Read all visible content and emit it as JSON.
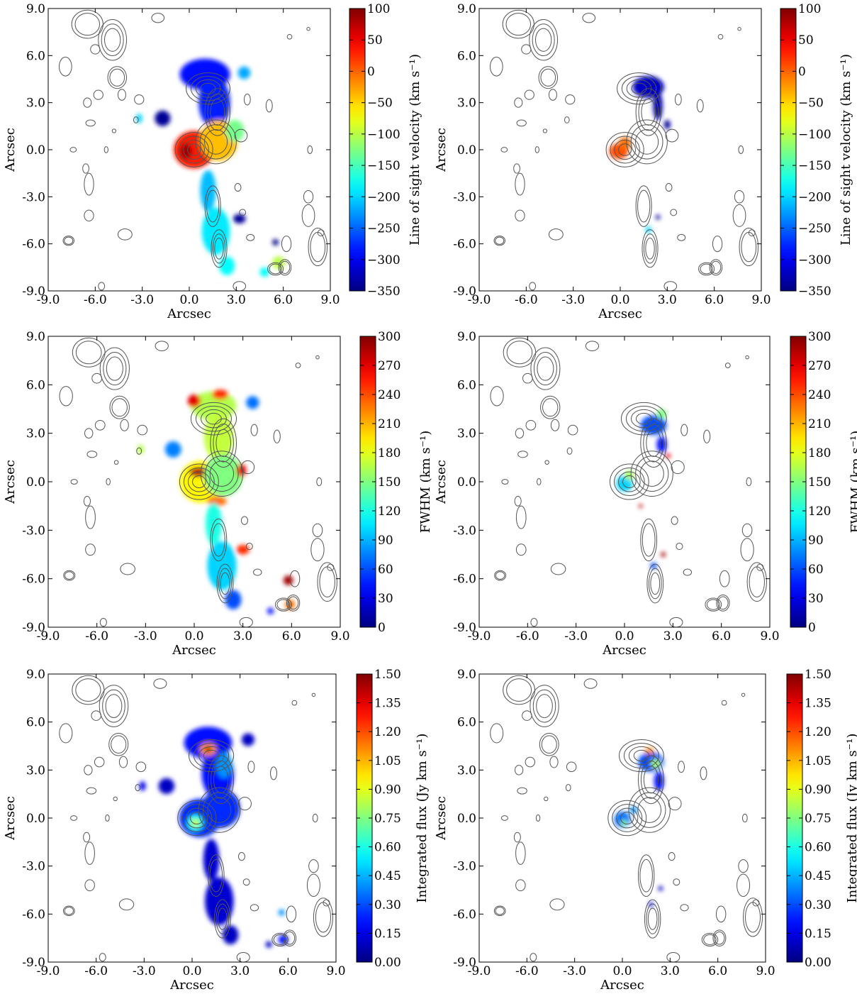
{
  "chart_data": [
    {
      "type": "heatmap",
      "panel": "velocity-extended",
      "xlabel": "Arcsec",
      "ylabel": "Arcsec",
      "xlim": [
        -9.0,
        9.0
      ],
      "ylim": [
        -9.0,
        9.0
      ],
      "xticks": [
        "-9.0",
        "-6.0",
        "-3.0",
        "0.0",
        "3.0",
        "6.0",
        "9.0"
      ],
      "yticks": [
        "-9.0",
        "-6.0",
        "-3.0",
        "0.0",
        "3.0",
        "6.0",
        "9.0"
      ],
      "colorbar": {
        "label": "Line of sight velocity (km s⁻¹)",
        "min": -350,
        "max": 100,
        "ticks": [
          "100",
          "50",
          "0",
          "−50",
          "−100",
          "−150",
          "−200",
          "−250",
          "−300",
          "−350"
        ]
      },
      "colormap": "jet",
      "contours": "grey",
      "features": [
        {
          "x": 1.0,
          "y": 4.8,
          "value": -290,
          "rx": 1.6,
          "ry": 1.0
        },
        {
          "x": 1.6,
          "y": 3.0,
          "value": -280,
          "rx": 1.0,
          "ry": 1.6
        },
        {
          "x": -1.7,
          "y": 2.0,
          "value": -340,
          "rx": 0.5,
          "ry": 0.5
        },
        {
          "x": -3.2,
          "y": 2.0,
          "value": -200,
          "rx": 0.2,
          "ry": 0.3
        },
        {
          "x": 3.5,
          "y": 4.9,
          "value": -220,
          "rx": 0.4,
          "ry": 0.4
        },
        {
          "x": 0.3,
          "y": 0.0,
          "value": 30,
          "rx": 1.3,
          "ry": 1.2
        },
        {
          "x": -0.2,
          "y": -0.1,
          "value": 85,
          "rx": 0.4,
          "ry": 0.5
        },
        {
          "x": 1.9,
          "y": 0.6,
          "value": -40,
          "rx": 1.2,
          "ry": 1.3
        },
        {
          "x": 2.9,
          "y": 1.2,
          "value": -130,
          "rx": 0.6,
          "ry": 0.7
        },
        {
          "x": 1.2,
          "y": -2.6,
          "value": -210,
          "rx": 0.5,
          "ry": 1.3
        },
        {
          "x": 1.7,
          "y": -5.2,
          "value": -190,
          "rx": 0.9,
          "ry": 1.5
        },
        {
          "x": 2.4,
          "y": -7.4,
          "value": -180,
          "rx": 0.5,
          "ry": 0.6
        },
        {
          "x": 3.2,
          "y": -4.4,
          "value": -340,
          "rx": 0.4,
          "ry": 0.3
        },
        {
          "x": 5.7,
          "y": -7.2,
          "value": -100,
          "rx": 0.4,
          "ry": 0.4
        },
        {
          "x": 4.8,
          "y": -7.8,
          "value": -180,
          "rx": 0.3,
          "ry": 0.3
        },
        {
          "x": 5.5,
          "y": -5.9,
          "value": -350,
          "rx": 0.2,
          "ry": 0.2
        }
      ]
    },
    {
      "type": "heatmap",
      "panel": "velocity-compact",
      "xlabel": "Arcsec",
      "ylabel": "Arcsec",
      "xlim": [
        -9.0,
        9.0
      ],
      "ylim": [
        -9.0,
        9.0
      ],
      "xticks": [
        "-9.0",
        "-6.0",
        "-3.0",
        "0.0",
        "3.0",
        "6.0",
        "9.0"
      ],
      "yticks": [
        "-9.0",
        "-6.0",
        "-3.0",
        "0.0",
        "3.0",
        "6.0",
        "9.0"
      ],
      "colorbar": {
        "label": "Line of sight velocity (km s⁻¹)",
        "min": -350,
        "max": 100,
        "ticks": [
          "100",
          "50",
          "0",
          "−50",
          "−100",
          "−150",
          "−200",
          "−250",
          "−300",
          "−350"
        ]
      },
      "colormap": "jet",
      "contours": "grey",
      "features": [
        {
          "x": 1.8,
          "y": 4.0,
          "value": -320,
          "rx": 1.0,
          "ry": 0.7
        },
        {
          "x": 2.4,
          "y": 2.8,
          "value": -330,
          "rx": 0.3,
          "ry": 0.9
        },
        {
          "x": 3.0,
          "y": 1.6,
          "value": -340,
          "rx": 0.2,
          "ry": 0.3
        },
        {
          "x": -0.1,
          "y": -0.1,
          "value": 10,
          "rx": 0.6,
          "ry": 0.5
        },
        {
          "x": 0.3,
          "y": 0.4,
          "value": -5,
          "rx": 0.4,
          "ry": 0.4
        },
        {
          "x": 1.8,
          "y": -5.1,
          "value": -200,
          "rx": 0.2,
          "ry": 0.2
        },
        {
          "x": 2.4,
          "y": -4.3,
          "value": -340,
          "rx": 0.15,
          "ry": 0.15
        }
      ]
    },
    {
      "type": "heatmap",
      "panel": "fwhm-extended",
      "xlabel": "Arcsec",
      "ylabel": "Arcsec",
      "xlim": [
        -9.0,
        9.0
      ],
      "ylim": [
        -9.0,
        9.0
      ],
      "xticks": [
        "-9.0",
        "-6.0",
        "-3.0",
        "0.0",
        "3.0",
        "6.0",
        "9.0"
      ],
      "yticks": [
        "-9.0",
        "-6.0",
        "-3.0",
        "0.0",
        "3.0",
        "6.0",
        "9.0"
      ],
      "colorbar": {
        "label": "FWHM (km s⁻¹)",
        "min": 0,
        "max": 300,
        "ticks": [
          "300",
          "270",
          "240",
          "210",
          "180",
          "150",
          "120",
          "90",
          "60",
          "30",
          "0"
        ]
      },
      "colormap": "jet",
      "contours": "grey",
      "features": [
        {
          "x": 1.2,
          "y": 4.7,
          "value": 165,
          "rx": 1.4,
          "ry": 0.9
        },
        {
          "x": 1.5,
          "y": 2.8,
          "value": 170,
          "rx": 0.9,
          "ry": 1.5
        },
        {
          "x": 0.0,
          "y": 5.0,
          "value": 270,
          "rx": 0.4,
          "ry": 0.4
        },
        {
          "x": 1.6,
          "y": 5.4,
          "value": 250,
          "rx": 0.5,
          "ry": 0.3
        },
        {
          "x": -1.3,
          "y": 2.0,
          "value": 75,
          "rx": 0.5,
          "ry": 0.5
        },
        {
          "x": -3.3,
          "y": 2.0,
          "value": 165,
          "rx": 0.2,
          "ry": 0.3
        },
        {
          "x": 3.6,
          "y": 4.9,
          "value": 70,
          "rx": 0.4,
          "ry": 0.4
        },
        {
          "x": 0.4,
          "y": 0.0,
          "value": 190,
          "rx": 1.3,
          "ry": 1.3
        },
        {
          "x": 0.3,
          "y": 0.6,
          "value": 285,
          "rx": 0.6,
          "ry": 0.3
        },
        {
          "x": 1.4,
          "y": -1.2,
          "value": 230,
          "rx": 0.6,
          "ry": 0.3
        },
        {
          "x": 1.8,
          "y": 0.4,
          "value": 150,
          "rx": 1.2,
          "ry": 1.3
        },
        {
          "x": 2.9,
          "y": 0.7,
          "value": 270,
          "rx": 0.3,
          "ry": 0.4
        },
        {
          "x": 1.2,
          "y": -2.6,
          "value": 120,
          "rx": 0.5,
          "ry": 1.3
        },
        {
          "x": 1.7,
          "y": -5.2,
          "value": 100,
          "rx": 0.9,
          "ry": 1.5
        },
        {
          "x": 2.4,
          "y": -7.3,
          "value": 60,
          "rx": 0.5,
          "ry": 0.6
        },
        {
          "x": 3.0,
          "y": -4.2,
          "value": 250,
          "rx": 0.4,
          "ry": 0.3
        },
        {
          "x": 5.8,
          "y": -6.1,
          "value": 290,
          "rx": 0.3,
          "ry": 0.3
        },
        {
          "x": 5.9,
          "y": -7.6,
          "value": 230,
          "rx": 0.3,
          "ry": 0.3
        },
        {
          "x": 4.7,
          "y": -8.0,
          "value": 40,
          "rx": 0.2,
          "ry": 0.2
        }
      ]
    },
    {
      "type": "heatmap",
      "panel": "fwhm-compact",
      "xlabel": "Arcsec",
      "ylabel": "Arcsec",
      "xlim": [
        -9.0,
        9.0
      ],
      "ylim": [
        -9.0,
        9.0
      ],
      "xticks": [
        "-9.0",
        "-6.0",
        "-3.0",
        "0.0",
        "3.0",
        "6.0",
        "9.0"
      ],
      "yticks": [
        "-9.0",
        "-6.0",
        "-3.0",
        "0.0",
        "3.0",
        "6.0",
        "9.0"
      ],
      "colorbar": {
        "label": "FWHM (km s⁻¹)",
        "min": 0,
        "max": 300,
        "ticks": [
          "300",
          "270",
          "240",
          "210",
          "180",
          "150",
          "120",
          "90",
          "60",
          "30",
          "0"
        ]
      },
      "colormap": "jet",
      "contours": "grey",
      "features": [
        {
          "x": 1.8,
          "y": 3.5,
          "value": 60,
          "rx": 0.8,
          "ry": 0.6
        },
        {
          "x": 2.3,
          "y": 4.2,
          "value": 150,
          "rx": 0.3,
          "ry": 0.3
        },
        {
          "x": 2.3,
          "y": 2.3,
          "value": 40,
          "rx": 0.3,
          "ry": 0.5
        },
        {
          "x": 2.7,
          "y": 1.6,
          "value": 270,
          "rx": 0.15,
          "ry": 0.15
        },
        {
          "x": 0.0,
          "y": -0.1,
          "value": 100,
          "rx": 0.5,
          "ry": 0.5
        },
        {
          "x": 0.3,
          "y": 0.4,
          "value": 160,
          "rx": 0.3,
          "ry": 0.3
        },
        {
          "x": 2.4,
          "y": -4.5,
          "value": 290,
          "rx": 0.15,
          "ry": 0.15
        },
        {
          "x": 1.8,
          "y": -5.2,
          "value": 60,
          "rx": 0.2,
          "ry": 0.2
        },
        {
          "x": 1.0,
          "y": -1.5,
          "value": 280,
          "rx": 0.12,
          "ry": 0.12
        }
      ]
    },
    {
      "type": "heatmap",
      "panel": "flux-extended",
      "xlabel": "Arcsec",
      "ylabel": "Arcsec",
      "xlim": [
        -9.0,
        9.0
      ],
      "ylim": [
        -9.0,
        9.0
      ],
      "xticks": [
        "-9.0",
        "-6.0",
        "-3.0",
        "0.0",
        "3.0",
        "6.0",
        "9.0"
      ],
      "yticks": [
        "-9.0",
        "-6.0",
        "-3.0",
        "0.0",
        "3.0",
        "6.0",
        "9.0"
      ],
      "colorbar": {
        "label": "Integrated flux (Jy km s⁻¹)",
        "min": 0.0,
        "max": 1.5,
        "ticks": [
          "1.50",
          "1.35",
          "1.20",
          "1.05",
          "0.90",
          "0.75",
          "0.60",
          "0.45",
          "0.30",
          "0.15",
          "0.00"
        ]
      },
      "colormap": "jet",
      "contours": "grey",
      "features": [
        {
          "x": 1.0,
          "y": 4.7,
          "value": 0.2,
          "rx": 1.5,
          "ry": 1.0
        },
        {
          "x": 1.6,
          "y": 2.8,
          "value": 0.2,
          "rx": 1.0,
          "ry": 1.6
        },
        {
          "x": 2.0,
          "y": 3.3,
          "value": 0.4,
          "rx": 0.5,
          "ry": 0.8
        },
        {
          "x": 1.0,
          "y": 4.3,
          "value": 1.1,
          "rx": 0.5,
          "ry": 0.4
        },
        {
          "x": 1.0,
          "y": 4.3,
          "value": 1.45,
          "rx": 0.2,
          "ry": 0.2
        },
        {
          "x": -1.6,
          "y": 2.0,
          "value": 0.1,
          "rx": 0.5,
          "ry": 0.5
        },
        {
          "x": -3.1,
          "y": 2.0,
          "value": 0.15,
          "rx": 0.2,
          "ry": 0.3
        },
        {
          "x": 3.5,
          "y": 4.9,
          "value": 0.1,
          "rx": 0.4,
          "ry": 0.4
        },
        {
          "x": 0.5,
          "y": 0.0,
          "value": 0.25,
          "rx": 1.3,
          "ry": 1.2
        },
        {
          "x": 0.2,
          "y": -0.3,
          "value": 0.6,
          "rx": 0.5,
          "ry": 0.5
        },
        {
          "x": 0.2,
          "y": -0.3,
          "value": 0.85,
          "rx": 0.25,
          "ry": 0.25
        },
        {
          "x": 1.8,
          "y": 0.6,
          "value": 0.25,
          "rx": 1.2,
          "ry": 1.2
        },
        {
          "x": 1.2,
          "y": -2.6,
          "value": 0.12,
          "rx": 0.5,
          "ry": 1.3
        },
        {
          "x": 1.7,
          "y": -5.2,
          "value": 0.12,
          "rx": 0.9,
          "ry": 1.5
        },
        {
          "x": 2.4,
          "y": -7.3,
          "value": 0.1,
          "rx": 0.5,
          "ry": 0.6
        },
        {
          "x": 5.7,
          "y": -7.6,
          "value": 0.2,
          "rx": 0.3,
          "ry": 0.3
        },
        {
          "x": 5.6,
          "y": -5.9,
          "value": 0.4,
          "rx": 0.2,
          "ry": 0.2
        },
        {
          "x": 4.8,
          "y": -7.9,
          "value": 0.1,
          "rx": 0.2,
          "ry": 0.2
        }
      ]
    },
    {
      "type": "heatmap",
      "panel": "flux-compact",
      "xlabel": "Arcsec",
      "ylabel": "Arcsec",
      "xlim": [
        -9.0,
        9.0
      ],
      "ylim": [
        -9.0,
        9.0
      ],
      "xticks": [
        "-9.0",
        "-6.0",
        "-3.0",
        "0.0",
        "3.0",
        "6.0",
        "9.0"
      ],
      "yticks": [
        "-9.0",
        "-6.0",
        "-3.0",
        "0.0",
        "3.0",
        "6.0",
        "9.0"
      ],
      "colorbar": {
        "label": "Integrated flux (Jy km s⁻¹)",
        "min": 0.0,
        "max": 1.5,
        "ticks": [
          "1.50",
          "1.35",
          "1.20",
          "1.05",
          "0.90",
          "0.75",
          "0.60",
          "0.45",
          "0.30",
          "0.15",
          "0.00"
        ]
      },
      "colormap": "jet",
      "contours": "grey",
      "features": [
        {
          "x": 1.8,
          "y": 3.5,
          "value": 0.3,
          "rx": 0.8,
          "ry": 0.6
        },
        {
          "x": 1.7,
          "y": 4.2,
          "value": 1.1,
          "rx": 0.3,
          "ry": 0.2
        },
        {
          "x": 2.1,
          "y": 3.4,
          "value": 0.8,
          "rx": 0.3,
          "ry": 0.3
        },
        {
          "x": 2.3,
          "y": 2.3,
          "value": 0.2,
          "rx": 0.3,
          "ry": 0.6
        },
        {
          "x": 0.0,
          "y": -0.1,
          "value": 0.35,
          "rx": 0.5,
          "ry": 0.5
        },
        {
          "x": 0.1,
          "y": -0.3,
          "value": 0.75,
          "rx": 0.2,
          "ry": 0.2
        },
        {
          "x": 0.7,
          "y": 0.5,
          "value": 0.4,
          "rx": 0.25,
          "ry": 0.2
        },
        {
          "x": 1.8,
          "y": -5.4,
          "value": 0.15,
          "rx": 0.15,
          "ry": 0.15
        },
        {
          "x": 2.4,
          "y": -4.4,
          "value": 0.1,
          "rx": 0.15,
          "ry": 0.15
        }
      ]
    }
  ]
}
